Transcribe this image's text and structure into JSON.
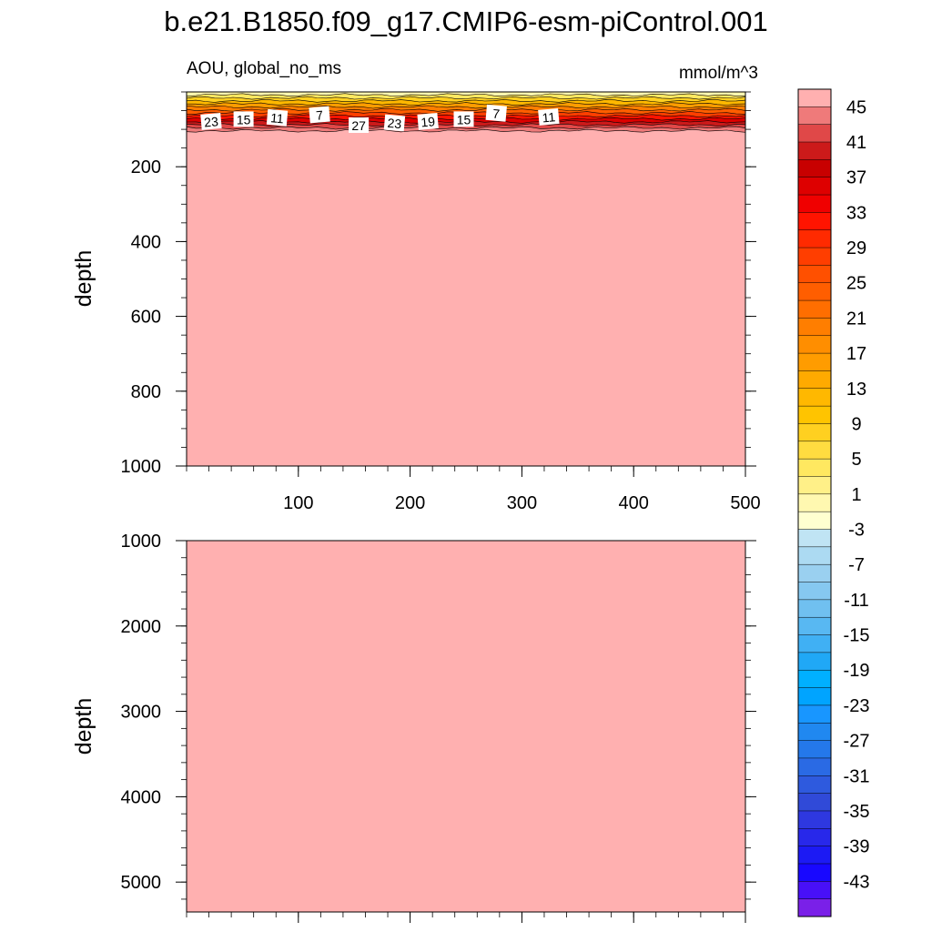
{
  "title": "b.e21.B1850.f09_g17.CMIP6-esm-piControl.001",
  "chart_data": [
    {
      "type": "heatmap",
      "panel": "top",
      "left_label": "AOU, global_no_ms",
      "right_label": "mmol/m^3",
      "xlabel": "",
      "ylabel": "depth",
      "xlim": [
        0,
        500
      ],
      "ylim": [
        1000,
        0
      ],
      "x_ticks": [
        100,
        200,
        300,
        400,
        500
      ],
      "y_ticks": [
        200,
        400,
        600,
        800,
        1000
      ],
      "fill_value_below_gradient": 47,
      "surface_gradient": [
        {
          "depth_top": 0,
          "depth_bottom": 8,
          "value": 1
        },
        {
          "depth_top": 8,
          "depth_bottom": 16,
          "value": 5
        },
        {
          "depth_top": 16,
          "depth_bottom": 24,
          "value": 9
        },
        {
          "depth_top": 24,
          "depth_bottom": 32,
          "value": 13
        },
        {
          "depth_top": 32,
          "depth_bottom": 40,
          "value": 17
        },
        {
          "depth_top": 40,
          "depth_bottom": 48,
          "value": 21
        },
        {
          "depth_top": 48,
          "depth_bottom": 56,
          "value": 25
        },
        {
          "depth_top": 56,
          "depth_bottom": 64,
          "value": 29
        },
        {
          "depth_top": 64,
          "depth_bottom": 72,
          "value": 33
        },
        {
          "depth_top": 72,
          "depth_bottom": 80,
          "value": 37
        },
        {
          "depth_top": 80,
          "depth_bottom": 88,
          "value": 41
        },
        {
          "depth_top": 88,
          "depth_bottom": 96,
          "value": 43
        },
        {
          "depth_top": 96,
          "depth_bottom": 104,
          "value": 45
        }
      ],
      "contour_labels": [
        {
          "text": "23",
          "x": 22,
          "depth": 80
        },
        {
          "text": "15",
          "x": 51,
          "depth": 74
        },
        {
          "text": "11",
          "x": 81,
          "depth": 70
        },
        {
          "text": "7",
          "x": 119,
          "depth": 62
        },
        {
          "text": "27",
          "x": 154,
          "depth": 90
        },
        {
          "text": "23",
          "x": 186,
          "depth": 84
        },
        {
          "text": "19",
          "x": 216,
          "depth": 80
        },
        {
          "text": "15",
          "x": 248,
          "depth": 74
        },
        {
          "text": "7",
          "x": 277,
          "depth": 58
        },
        {
          "text": "11",
          "x": 324,
          "depth": 68
        }
      ]
    },
    {
      "type": "heatmap",
      "panel": "bottom",
      "xlabel": "",
      "ylabel": "depth",
      "xlim": [
        0,
        500
      ],
      "ylim": [
        5350,
        1000
      ],
      "y_ticks": [
        1000,
        2000,
        3000,
        4000,
        5000
      ],
      "fill_value": 47
    }
  ],
  "colorbar": {
    "levels_min": -47,
    "levels_max": 47,
    "step": 2,
    "tick_labels": [
      "45",
      "41",
      "37",
      "33",
      "29",
      "25",
      "21",
      "17",
      "13",
      "9",
      "5",
      "1",
      "-3",
      "-7",
      "-11",
      "-15",
      "-19",
      "-23",
      "-27",
      "-31",
      "-35",
      "-39",
      "-43"
    ],
    "colors_top_to_bottom": [
      "#ffb0b0",
      "#ef7a7a",
      "#e04848",
      "#cc1a1a",
      "#c80000",
      "#de0000",
      "#f00000",
      "#ff1400",
      "#ff2a00",
      "#ff3e00",
      "#ff5000",
      "#ff5e00",
      "#ff6e00",
      "#ff7e00",
      "#ff8e00",
      "#ff9c00",
      "#ffaa00",
      "#ffb800",
      "#ffc400",
      "#ffd020",
      "#ffdc40",
      "#ffe860",
      "#fff088",
      "#fff8b0",
      "#ffffd0",
      "#c0e4f4",
      "#acdaf2",
      "#9ad0f0",
      "#86c8f0",
      "#70c0f0",
      "#58b8f2",
      "#40b0f4",
      "#20a8f6",
      "#00b0ff",
      "#00a4ff",
      "#1896ff",
      "#2088f0",
      "#2478ea",
      "#2a6ae4",
      "#2e5ade",
      "#304ad8",
      "#2e38e0",
      "#2828ea",
      "#1c1af4",
      "#1808ff",
      "#4810f8",
      "#7a20e8"
    ]
  }
}
